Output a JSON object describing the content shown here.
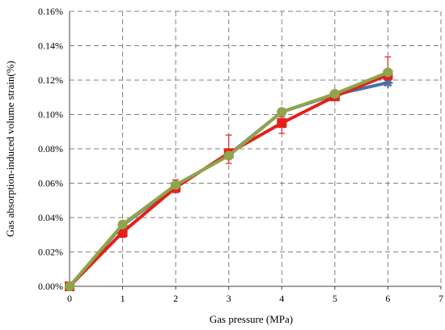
{
  "chart_data": {
    "type": "line",
    "xlabel": "Gas pressure (MPa)",
    "ylabel": "Gas absorption-induced volume strain(%)",
    "xlim": [
      0,
      7
    ],
    "ylim": [
      0,
      0.16
    ],
    "x_ticks": [
      "0",
      "1",
      "2",
      "3",
      "4",
      "5",
      "6",
      "7"
    ],
    "y_ticks": [
      "0.00%",
      "0.02%",
      "0.04%",
      "0.06%",
      "0.08%",
      "0.10%",
      "0.12%",
      "0.14%",
      "0.16%"
    ],
    "grid": true,
    "legend": "none",
    "x": [
      0,
      1,
      2,
      3,
      4,
      5,
      6
    ],
    "series": [
      {
        "color": "#4a6fa8",
        "marker": "star",
        "values": [
          0.0,
          0.0355,
          0.0585,
          0.0765,
          0.1015,
          0.1115,
          0.1185
        ]
      },
      {
        "color": "#e3201b",
        "marker": "square",
        "values": [
          0.0,
          0.0315,
          0.0575,
          0.0775,
          0.095,
          0.1105,
          0.123
        ],
        "error_plus": [
          0.0,
          0.0035,
          0.0045,
          0.0105,
          0.0035,
          0.0025,
          0.0105
        ],
        "error_minus": [
          0.0,
          0.003,
          0.003,
          0.006,
          0.006,
          0.002,
          0.003
        ]
      },
      {
        "color": "#8ea54b",
        "marker": "circle",
        "values": [
          0.0,
          0.036,
          0.059,
          0.076,
          0.1015,
          0.112,
          0.1245
        ]
      }
    ]
  }
}
